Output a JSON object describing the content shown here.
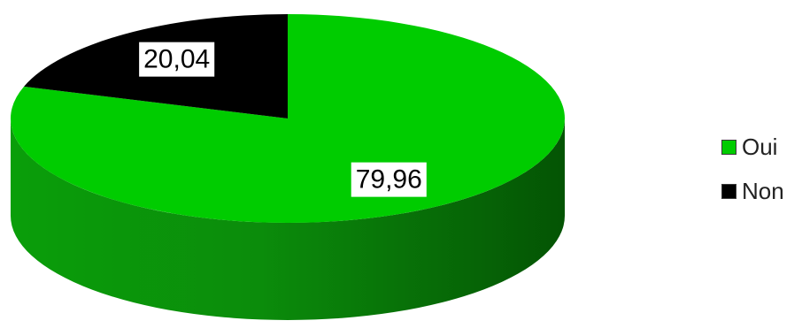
{
  "chart_data": {
    "type": "pie",
    "style": "3d",
    "categories": [
      "Oui",
      "Non"
    ],
    "values": [
      79.96,
      20.04
    ],
    "value_labels": [
      "79,96",
      "20,04"
    ],
    "colors": [
      "#00cc00",
      "#000000"
    ],
    "side_colors": [
      "#009400",
      "#000000"
    ],
    "start_angle_deg": -90,
    "legend_position": "right",
    "legend": [
      {
        "label": "Oui",
        "color": "#00cc00"
      },
      {
        "label": "Non",
        "color": "#000000"
      }
    ]
  }
}
